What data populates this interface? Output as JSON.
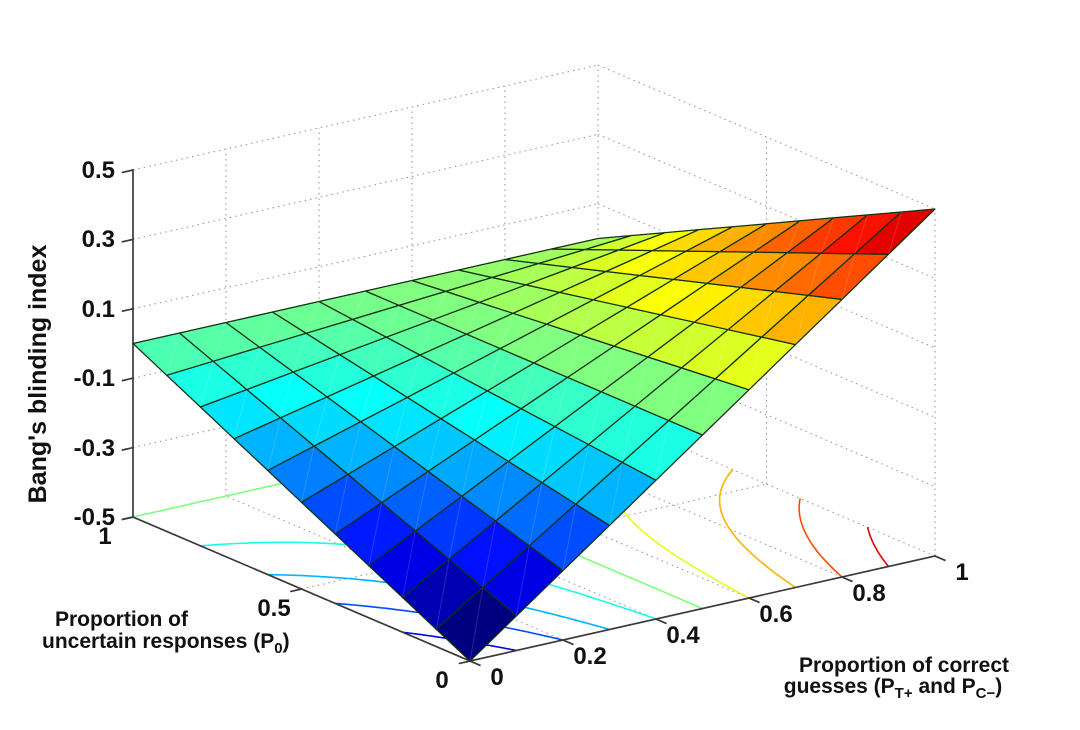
{
  "figure": {
    "background": "#ffffff",
    "z_axis": {
      "label": "Bang's blinding index"
    },
    "y_axis": {
      "label_line1": "Proportion of",
      "label_line2_pre": "uncertain responses (P",
      "label_line2_sub": "0",
      "label_line2_post": ")"
    },
    "x_axis": {
      "label_line1": "Proportion of correct",
      "label_line2_pre": "guesses (P",
      "label_line2_sub1": "T+",
      "label_line2_mid": " and P",
      "label_line2_sub2": "C−",
      "label_line2_post": ")"
    }
  },
  "chart_data": {
    "type": "surface",
    "title": "",
    "xlabel": "Proportion of correct guesses (P_T+ and P_C-)",
    "ylabel": "Proportion of uncertain responses (P_0)",
    "zlabel": "Bang's blinding index",
    "colormap": "jet",
    "grid": true,
    "z_formula": "z = (x - 0.5) * (1 - y)",
    "x": [
      0,
      0.1,
      0.2,
      0.3,
      0.4,
      0.5,
      0.6,
      0.7,
      0.8,
      0.9,
      1
    ],
    "y": [
      0,
      0.1,
      0.2,
      0.3,
      0.4,
      0.5,
      0.6,
      0.7,
      0.8,
      0.9,
      1
    ],
    "z": [
      [
        -0.5,
        -0.4,
        -0.3,
        -0.2,
        -0.1,
        0,
        0.1,
        0.2,
        0.3,
        0.4,
        0.5
      ],
      [
        -0.45,
        -0.36,
        -0.27,
        -0.18,
        -0.09,
        0,
        0.09,
        0.18,
        0.27,
        0.36,
        0.45
      ],
      [
        -0.4,
        -0.32,
        -0.24,
        -0.16,
        -0.08,
        0,
        0.08,
        0.16,
        0.24,
        0.32,
        0.4
      ],
      [
        -0.35,
        -0.28,
        -0.21,
        -0.14,
        -0.07,
        0,
        0.07,
        0.14,
        0.21,
        0.28,
        0.35
      ],
      [
        -0.3,
        -0.24,
        -0.18,
        -0.12,
        -0.06,
        0,
        0.06,
        0.12,
        0.18,
        0.24,
        0.3
      ],
      [
        -0.25,
        -0.2,
        -0.15,
        -0.1,
        -0.05,
        0,
        0.05,
        0.1,
        0.15,
        0.2,
        0.25
      ],
      [
        -0.2,
        -0.16,
        -0.12,
        -0.08,
        -0.04,
        0,
        0.04,
        0.08,
        0.12,
        0.16,
        0.2
      ],
      [
        -0.15,
        -0.12,
        -0.09,
        -0.06,
        -0.03,
        0,
        0.03,
        0.06,
        0.09,
        0.12,
        0.15
      ],
      [
        -0.1,
        -0.08,
        -0.06,
        -0.04,
        -0.02,
        0,
        0.02,
        0.04,
        0.06,
        0.08,
        0.1
      ],
      [
        -0.05,
        -0.04,
        -0.03,
        -0.02,
        -0.01,
        0,
        0.01,
        0.02,
        0.03,
        0.04,
        0.05
      ],
      [
        0,
        0,
        0,
        0,
        0,
        0,
        0,
        0,
        0,
        0,
        0
      ]
    ],
    "zlim": [
      -0.5,
      0.5
    ],
    "x_tick_values": [
      0,
      0.2,
      0.4,
      0.6,
      0.8,
      1
    ],
    "x_tick_labels": [
      "0",
      "0.2",
      "0.4",
      "0.6",
      "0.8",
      "1"
    ],
    "y_tick_values": [
      0,
      0.5,
      1
    ],
    "y_tick_labels": [
      "0",
      "0.5",
      "1"
    ],
    "z_tick_values": [
      0.5,
      0.3,
      0.1,
      -0.1,
      -0.3,
      -0.5
    ],
    "z_tick_labels": [
      "0.5",
      "0.3",
      "0.1",
      "-0.1",
      "-0.3",
      "-0.5"
    ],
    "contour_levels": [
      -0.4,
      -0.3,
      -0.2,
      -0.1,
      0,
      0.1,
      0.2,
      0.3,
      0.4
    ],
    "legend": "none",
    "colors": {
      "axis": "#3a3a3a",
      "grid_dots": "#999999",
      "mesh_edge": "#123012",
      "tick_text": "#111111"
    }
  }
}
